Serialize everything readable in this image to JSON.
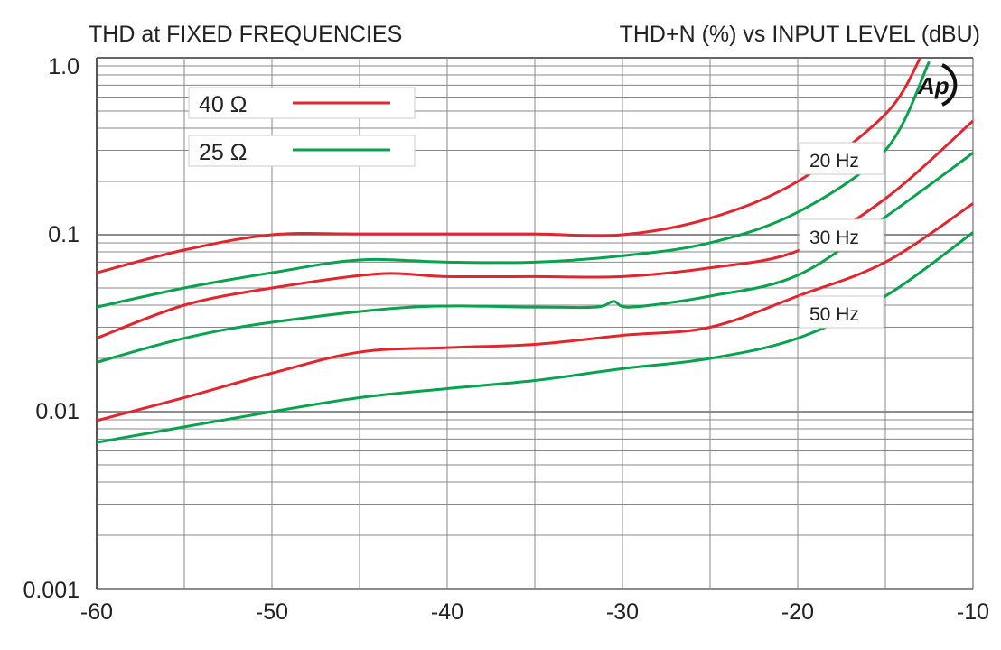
{
  "chart_data": {
    "type": "line",
    "title": "THD at FIXED FREQUENCIES",
    "subtitle": "THD+N (%) vs INPUT LEVEL (dBU)",
    "xlabel": "INPUT LEVEL (dBU)",
    "ylabel": "THD+N (%)",
    "xlim": [
      -60,
      -10
    ],
    "ylim": [
      0.001,
      1.0
    ],
    "yscale": "log",
    "grid": true,
    "x_ticks": [
      "-60",
      "-50",
      "-40",
      "-30",
      "-20",
      "-10"
    ],
    "x_tick_values": [
      -60,
      -50,
      -40,
      -30,
      -20,
      -10
    ],
    "y_ticks": [
      "1.0",
      "0.1",
      "0.01",
      "0.001"
    ],
    "y_tick_values": [
      1.0,
      0.1,
      0.01,
      0.001
    ],
    "legend": {
      "placement": "top-left",
      "entries": [
        {
          "label": "40 Ω",
          "color": "#e0262e"
        },
        {
          "label": "25 Ω",
          "color": "#0aa14f"
        }
      ]
    },
    "annotations": [
      {
        "text": "20 Hz",
        "x": -20,
        "y": 0.3
      },
      {
        "text": "30 Hz",
        "x": -20,
        "y": 0.095
      },
      {
        "text": "50 Hz",
        "x": -20,
        "y": 0.033
      }
    ],
    "logo_text": "AP",
    "series": [
      {
        "name": "40 Ω 20 Hz",
        "color": "#e0262e",
        "x": [
          -60,
          -55,
          -50,
          -45,
          -40,
          -35,
          -30,
          -25,
          -20,
          -15,
          -13
        ],
        "y": [
          0.061,
          0.082,
          0.1,
          0.101,
          0.101,
          0.101,
          0.1,
          0.124,
          0.2,
          0.48,
          1.0
        ]
      },
      {
        "name": "25 Ω 20 Hz",
        "color": "#0aa14f",
        "x": [
          -60,
          -55,
          -50,
          -45,
          -40,
          -35,
          -30,
          -25,
          -20,
          -15,
          -12.5
        ],
        "y": [
          0.039,
          0.05,
          0.061,
          0.072,
          0.07,
          0.07,
          0.076,
          0.09,
          0.134,
          0.3,
          0.95
        ]
      },
      {
        "name": "40 Ω 30 Hz",
        "color": "#e0262e",
        "x": [
          -60,
          -55,
          -50,
          -44,
          -40,
          -35,
          -30,
          -25,
          -20,
          -15,
          -10
        ],
        "y": [
          0.026,
          0.04,
          0.05,
          0.06,
          0.058,
          0.058,
          0.058,
          0.065,
          0.081,
          0.16,
          0.44
        ]
      },
      {
        "name": "25 Ω 30 Hz",
        "color": "#0aa14f",
        "x": [
          -60,
          -55,
          -50,
          -42,
          -35,
          -31.5,
          -30.5,
          -29.5,
          -25,
          -20,
          -15,
          -10
        ],
        "y": [
          0.019,
          0.026,
          0.032,
          0.039,
          0.039,
          0.039,
          0.042,
          0.039,
          0.045,
          0.059,
          0.126,
          0.29
        ]
      },
      {
        "name": "40 Ω 50 Hz",
        "color": "#e0262e",
        "x": [
          -60,
          -55,
          -50,
          -45,
          -40,
          -35,
          -30,
          -25,
          -20,
          -15,
          -10
        ],
        "y": [
          0.0089,
          0.012,
          0.0165,
          0.0217,
          0.023,
          0.024,
          0.027,
          0.03,
          0.045,
          0.07,
          0.15
        ]
      },
      {
        "name": "25 Ω 50 Hz",
        "color": "#0aa14f",
        "x": [
          -60,
          -55,
          -50,
          -45,
          -40,
          -35,
          -30,
          -25,
          -20,
          -15,
          -10
        ],
        "y": [
          0.0067,
          0.0082,
          0.01,
          0.012,
          0.0135,
          0.015,
          0.0175,
          0.02,
          0.026,
          0.045,
          0.103
        ]
      }
    ]
  }
}
